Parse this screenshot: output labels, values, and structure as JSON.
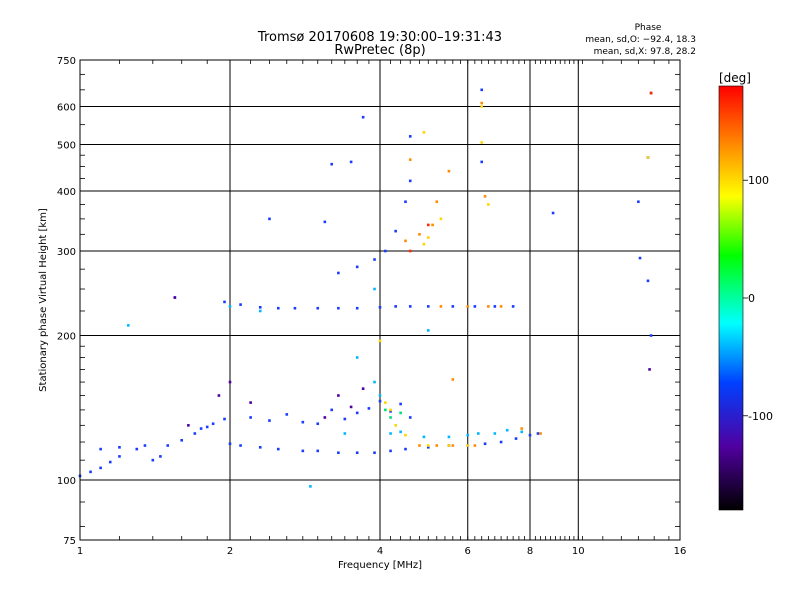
{
  "chart_data": {
    "type": "scatter",
    "title": "Tromsø 20170608 19:30:00–19:31:43",
    "subtitle": "RwPretec (8p)",
    "xlabel": "Frequency [MHz]",
    "ylabel": "Stationary phase Virtual Height [km]",
    "x_scale": "log",
    "y_scale": "log",
    "xlim": [
      1,
      16
    ],
    "ylim": [
      75,
      750
    ],
    "x_ticks": [
      1,
      2,
      4,
      6,
      8,
      10,
      16
    ],
    "y_ticks": [
      75,
      100,
      200,
      300,
      400,
      500,
      600,
      750
    ],
    "grid": true,
    "phase_stats": {
      "header": "Phase",
      "line_o": "mean, sd,O: −92.4, 18.3",
      "line_x": "mean, sd,X:  97.8, 28.2"
    },
    "colorbar": {
      "label": "[deg]",
      "range": [
        -180,
        180
      ],
      "ticks": [
        100,
        0,
        -100
      ],
      "colors": [
        "#ff0000",
        "#ff8c00",
        "#ffff00",
        "#00ff00",
        "#00ffff",
        "#0040ff",
        "#5000a0",
        "#000000"
      ]
    },
    "series": [
      {
        "color": "#1a3cff",
        "points": [
          [
            1.0,
            102
          ],
          [
            1.05,
            104
          ],
          [
            1.1,
            106
          ],
          [
            1.15,
            109
          ],
          [
            1.2,
            112
          ],
          [
            1.3,
            116
          ],
          [
            1.4,
            110
          ],
          [
            1.45,
            112
          ],
          [
            1.5,
            118
          ],
          [
            1.6,
            121
          ],
          [
            1.7,
            125
          ],
          [
            1.75,
            128
          ],
          [
            1.8,
            129
          ],
          [
            1.85,
            131
          ],
          [
            1.95,
            134
          ],
          [
            2.0,
            119
          ],
          [
            2.1,
            118
          ],
          [
            2.3,
            117
          ],
          [
            2.5,
            116
          ],
          [
            2.8,
            115
          ],
          [
            3.0,
            115
          ],
          [
            3.3,
            114
          ],
          [
            3.6,
            114
          ],
          [
            3.9,
            114
          ],
          [
            4.2,
            115
          ],
          [
            4.5,
            116
          ],
          [
            5.0,
            117
          ],
          [
            5.5,
            118
          ],
          [
            6.0,
            118
          ],
          [
            6.5,
            119
          ],
          [
            7.0,
            120
          ],
          [
            7.5,
            122
          ],
          [
            8.0,
            124
          ],
          [
            8.3,
            125
          ],
          [
            1.1,
            116
          ],
          [
            1.2,
            117
          ],
          [
            1.35,
            118
          ],
          [
            2.2,
            135
          ],
          [
            2.4,
            133
          ],
          [
            2.6,
            137
          ],
          [
            2.8,
            132
          ],
          [
            3.0,
            131
          ],
          [
            3.2,
            140
          ],
          [
            3.4,
            134
          ],
          [
            3.6,
            138
          ],
          [
            3.8,
            141
          ],
          [
            4.0,
            146
          ],
          [
            4.2,
            139
          ],
          [
            4.4,
            144
          ],
          [
            4.6,
            135
          ],
          [
            1.95,
            235
          ],
          [
            2.1,
            232
          ],
          [
            2.3,
            229
          ],
          [
            2.5,
            228
          ],
          [
            2.7,
            228
          ],
          [
            3.0,
            228
          ],
          [
            3.3,
            228
          ],
          [
            3.6,
            228
          ],
          [
            4.0,
            229
          ],
          [
            4.3,
            230
          ],
          [
            4.6,
            230
          ],
          [
            5.0,
            230
          ],
          [
            5.6,
            230
          ],
          [
            6.2,
            230
          ],
          [
            6.8,
            230
          ],
          [
            7.4,
            230
          ],
          [
            3.3,
            270
          ],
          [
            3.6,
            278
          ],
          [
            3.9,
            288
          ],
          [
            4.1,
            300
          ],
          [
            4.3,
            330
          ],
          [
            4.5,
            380
          ],
          [
            4.6,
            420
          ],
          [
            3.2,
            455
          ],
          [
            3.5,
            460
          ],
          [
            4.6,
            520
          ],
          [
            6.4,
            650
          ],
          [
            3.7,
            570
          ],
          [
            1.55,
            240
          ],
          [
            13.2,
            380
          ],
          [
            13.8,
            470
          ],
          [
            6.4,
            460
          ],
          [
            13.3,
            290
          ],
          [
            13.8,
            260
          ],
          [
            8.9,
            360
          ],
          [
            14.0,
            200
          ],
          [
            2.4,
            350
          ],
          [
            3.1,
            345
          ]
        ]
      },
      {
        "color": "#5000a0",
        "points": [
          [
            1.65,
            130
          ],
          [
            1.9,
            150
          ],
          [
            2.0,
            160
          ],
          [
            2.2,
            145
          ],
          [
            3.1,
            135
          ],
          [
            3.3,
            150
          ],
          [
            3.5,
            142
          ],
          [
            3.7,
            155
          ],
          [
            1.55,
            240
          ],
          [
            14.0,
            640
          ],
          [
            13.9,
            170
          ]
        ]
      },
      {
        "color": "#00b8ff",
        "points": [
          [
            2.0,
            230
          ],
          [
            2.3,
            225
          ],
          [
            3.6,
            180
          ],
          [
            3.9,
            160
          ],
          [
            5.0,
            205
          ],
          [
            2.9,
            97
          ],
          [
            3.4,
            125
          ],
          [
            4.0,
            150
          ],
          [
            1.25,
            210
          ],
          [
            3.9,
            250
          ],
          [
            4.2,
            125
          ],
          [
            4.4,
            126
          ],
          [
            4.9,
            123
          ],
          [
            5.5,
            123
          ],
          [
            6.0,
            124
          ],
          [
            6.3,
            125
          ],
          [
            6.8,
            125
          ],
          [
            7.2,
            127
          ],
          [
            7.7,
            126
          ]
        ]
      },
      {
        "color": "#ffd500",
        "points": [
          [
            4.1,
            145
          ],
          [
            4.2,
            140
          ],
          [
            4.3,
            130
          ],
          [
            4.5,
            124
          ],
          [
            5.0,
            118
          ],
          [
            5.5,
            118
          ],
          [
            6.0,
            118
          ],
          [
            4.9,
            530
          ],
          [
            4.0,
            195
          ],
          [
            4.9,
            310
          ],
          [
            5.0,
            320
          ],
          [
            5.3,
            350
          ],
          [
            13.8,
            470
          ],
          [
            6.4,
            600
          ],
          [
            6.6,
            375
          ],
          [
            6.4,
            505
          ]
        ]
      },
      {
        "color": "#ff8c00",
        "points": [
          [
            4.8,
            118
          ],
          [
            5.2,
            118
          ],
          [
            5.6,
            118
          ],
          [
            6.2,
            118
          ],
          [
            4.5,
            315
          ],
          [
            4.8,
            325
          ],
          [
            5.1,
            340
          ],
          [
            5.2,
            380
          ],
          [
            6.5,
            390
          ],
          [
            5.5,
            440
          ],
          [
            4.6,
            465
          ],
          [
            5.3,
            230
          ],
          [
            6.0,
            230
          ],
          [
            6.6,
            230
          ],
          [
            7.0,
            230
          ],
          [
            8.4,
            125
          ],
          [
            5.6,
            162
          ],
          [
            7.7,
            128
          ],
          [
            6.4,
            610
          ]
        ]
      },
      {
        "color": "#ff2a00",
        "points": [
          [
            4.6,
            300
          ],
          [
            5.0,
            340
          ],
          [
            14.0,
            640
          ]
        ]
      },
      {
        "color": "#00e070",
        "points": [
          [
            4.1,
            140
          ],
          [
            4.2,
            135
          ],
          [
            4.4,
            138
          ]
        ]
      }
    ]
  }
}
